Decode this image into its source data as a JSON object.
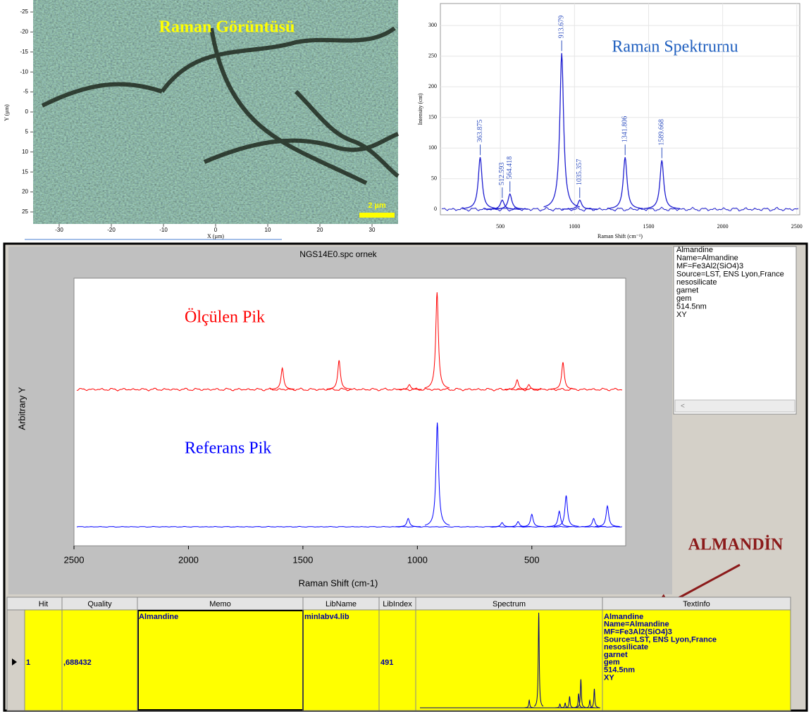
{
  "chart_data": [
    {
      "type": "image",
      "title": "Raman Görüntüsü",
      "xlabel": "X (µm)",
      "ylabel": "Y (µm)",
      "scale_bar": "2 µm",
      "xlim": [
        -35,
        35
      ],
      "ylim": [
        -28,
        28
      ],
      "xticks": [
        -30,
        -20,
        -10,
        0,
        10,
        20,
        30
      ],
      "yticks": [
        -25,
        -20,
        -15,
        -10,
        -5,
        0,
        5,
        10,
        15,
        20,
        25
      ]
    },
    {
      "type": "line",
      "title": "Raman Spektrumu",
      "xlabel": "Raman Shift (cm⁻¹)",
      "ylabel": "Intensity (cnt)",
      "xlim": [
        95,
        2520
      ],
      "ylim": [
        -9,
        336
      ],
      "xticks": [
        500,
        1000,
        1500,
        2000,
        2500
      ],
      "yticks": [
        0,
        50,
        100,
        150,
        200,
        250,
        300
      ],
      "peak_labels": true,
      "series": [
        {
          "color": "#1f1fd0",
          "x": [
            363.875,
            512.593,
            564.418,
            913.679,
            1035.357,
            1341.806,
            1589.668
          ],
          "values": [
            85,
            15,
            25,
            255,
            15,
            85,
            80
          ]
        }
      ]
    },
    {
      "type": "line",
      "title": "NGS14E0.spc  ornek",
      "xlabel": "Raman Shift (cm-1)",
      "ylabel": "Arbitrary Y",
      "xlim": [
        2500,
        90
      ],
      "xticks": [
        2500,
        2000,
        1500,
        1000,
        500
      ],
      "series": [
        {
          "annotation": "Ölçülen Pik",
          "color": "#ff0000",
          "x": [
            364,
            513,
            564,
            914,
            1035,
            1342,
            1590
          ],
          "values": [
            0.28,
            0.05,
            0.1,
            1.0,
            0.05,
            0.3,
            0.22
          ]
        },
        {
          "annotation": "Referans Pik",
          "color": "#0000ff",
          "x": [
            170,
            230,
            350,
            380,
            500,
            560,
            630,
            913,
            1040
          ],
          "values": [
            0.2,
            0.08,
            0.3,
            0.15,
            0.12,
            0.05,
            0.04,
            1.0,
            0.08
          ]
        }
      ]
    }
  ],
  "info_panel": {
    "lines": [
      "Almandine",
      "Name=Almandine",
      "MF=Fe3Al2(SiO4)3",
      "Source=LST, ENS Lyon,France",
      "nesosilicate",
      "garnet",
      "gem",
      "514.5nm",
      "XY"
    ]
  },
  "callout": "ALMANDİN",
  "table": {
    "columns": [
      "Hit",
      "Quality",
      "Memo",
      "LibName",
      "LibIndex",
      "Spectrum",
      "TextInfo"
    ],
    "row": {
      "hit": "1",
      "quality": ",688432",
      "memo": "Almandine",
      "libname": "minlabv4.lib",
      "libindex": "491",
      "textinfo": [
        "Almandine",
        "Name=Almandine",
        "MF=Fe3Al2(SiO4)3",
        "Source=LST, ENS Lyon,France",
        "nesosilicate",
        "garnet",
        "gem",
        "514.5nm",
        "XY"
      ]
    }
  }
}
